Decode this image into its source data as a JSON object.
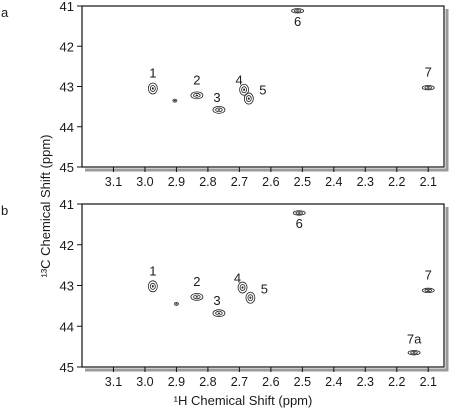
{
  "chart_data": [
    {
      "type": "scatter",
      "panel_label": "a",
      "xlabel": "",
      "ylabel": "",
      "xlim": [
        3.2,
        2.05
      ],
      "ylim": [
        45,
        41
      ],
      "x_reversed": true,
      "y_reversed": true,
      "x_ticks": [
        "3.1",
        "3.0",
        "2.9",
        "2.8",
        "2.7",
        "2.6",
        "2.5",
        "2.4",
        "2.3",
        "2.2",
        "2.1"
      ],
      "y_ticks": [
        "41",
        "42",
        "43",
        "44",
        "45"
      ],
      "peaks": [
        {
          "label": "1",
          "x": 2.975,
          "y": 43.05
        },
        {
          "label": "",
          "x": 2.905,
          "y": 43.35
        },
        {
          "label": "2",
          "x": 2.835,
          "y": 43.22
        },
        {
          "label": "3",
          "x": 2.765,
          "y": 43.58
        },
        {
          "label": "4",
          "x": 2.685,
          "y": 43.08
        },
        {
          "label": "5",
          "x": 2.67,
          "y": 43.3
        },
        {
          "label": "6",
          "x": 2.515,
          "y": 41.12
        },
        {
          "label": "7",
          "x": 2.1,
          "y": 43.03
        }
      ]
    },
    {
      "type": "scatter",
      "panel_label": "b",
      "xlabel": "¹H Chemical Shift (ppm)",
      "ylabel": "",
      "xlim": [
        3.2,
        2.05
      ],
      "ylim": [
        45,
        41
      ],
      "x_reversed": true,
      "y_reversed": true,
      "x_ticks": [
        "3.1",
        "3.0",
        "2.9",
        "2.8",
        "2.7",
        "2.6",
        "2.5",
        "2.4",
        "2.3",
        "2.2",
        "2.1"
      ],
      "y_ticks": [
        "41",
        "42",
        "43",
        "44",
        "45"
      ],
      "peaks": [
        {
          "label": "1",
          "x": 2.975,
          "y": 43.02
        },
        {
          "label": "",
          "x": 2.9,
          "y": 43.45
        },
        {
          "label": "2",
          "x": 2.835,
          "y": 43.28
        },
        {
          "label": "3",
          "x": 2.765,
          "y": 43.68
        },
        {
          "label": "4",
          "x": 2.69,
          "y": 43.05
        },
        {
          "label": "5",
          "x": 2.665,
          "y": 43.3
        },
        {
          "label": "6",
          "x": 2.51,
          "y": 41.22
        },
        {
          "label": "7",
          "x": 2.1,
          "y": 43.12
        },
        {
          "label": "7a",
          "x": 2.145,
          "y": 44.65
        }
      ]
    }
  ],
  "shared_ylabel": "¹³C Chemical Shift (ppm)"
}
